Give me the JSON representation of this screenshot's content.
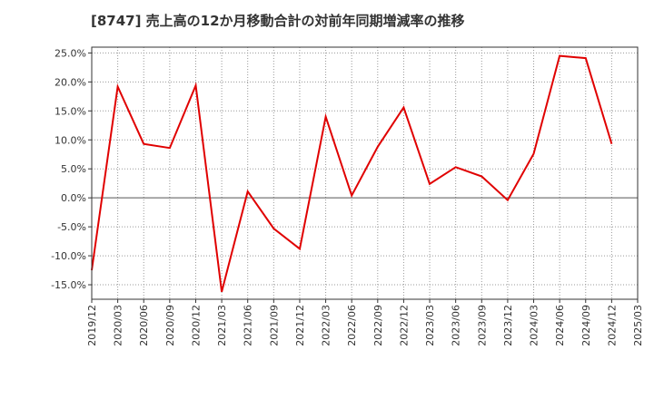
{
  "chart_data": {
    "type": "line",
    "title": "[8747]  売上高の12か月移動合計の対前年同期増減率の推移",
    "xlabel": "",
    "ylabel": "",
    "ylim": [
      -17.5,
      26.0
    ],
    "grid": true,
    "legend": "none",
    "y_ticks": [
      25.0,
      20.0,
      15.0,
      10.0,
      5.0,
      0.0,
      -5.0,
      -10.0,
      -15.0
    ],
    "y_tick_labels": [
      "25.0%",
      "20.0%",
      "15.0%",
      "10.0%",
      "5.0%",
      "0.0%",
      "-5.0%",
      "-10.0%",
      "-15.0%"
    ],
    "categories": [
      "2019/12",
      "2020/03",
      "2020/06",
      "2020/09",
      "2020/12",
      "2021/03",
      "2021/06",
      "2021/09",
      "2021/12",
      "2022/03",
      "2022/06",
      "2022/09",
      "2022/12",
      "2023/03",
      "2023/06",
      "2023/09",
      "2023/12",
      "2024/03",
      "2024/06",
      "2024/09",
      "2024/12",
      "2025/03"
    ],
    "series": [
      {
        "name": "増減率",
        "color": "#e00000",
        "values": [
          -12.5,
          19.2,
          9.3,
          8.6,
          19.4,
          -16.2,
          1.1,
          -5.3,
          -8.8,
          14.0,
          0.4,
          8.8,
          15.6,
          2.4,
          5.3,
          3.7,
          -0.4,
          7.6,
          24.5,
          24.1,
          9.3,
          null
        ]
      }
    ]
  }
}
